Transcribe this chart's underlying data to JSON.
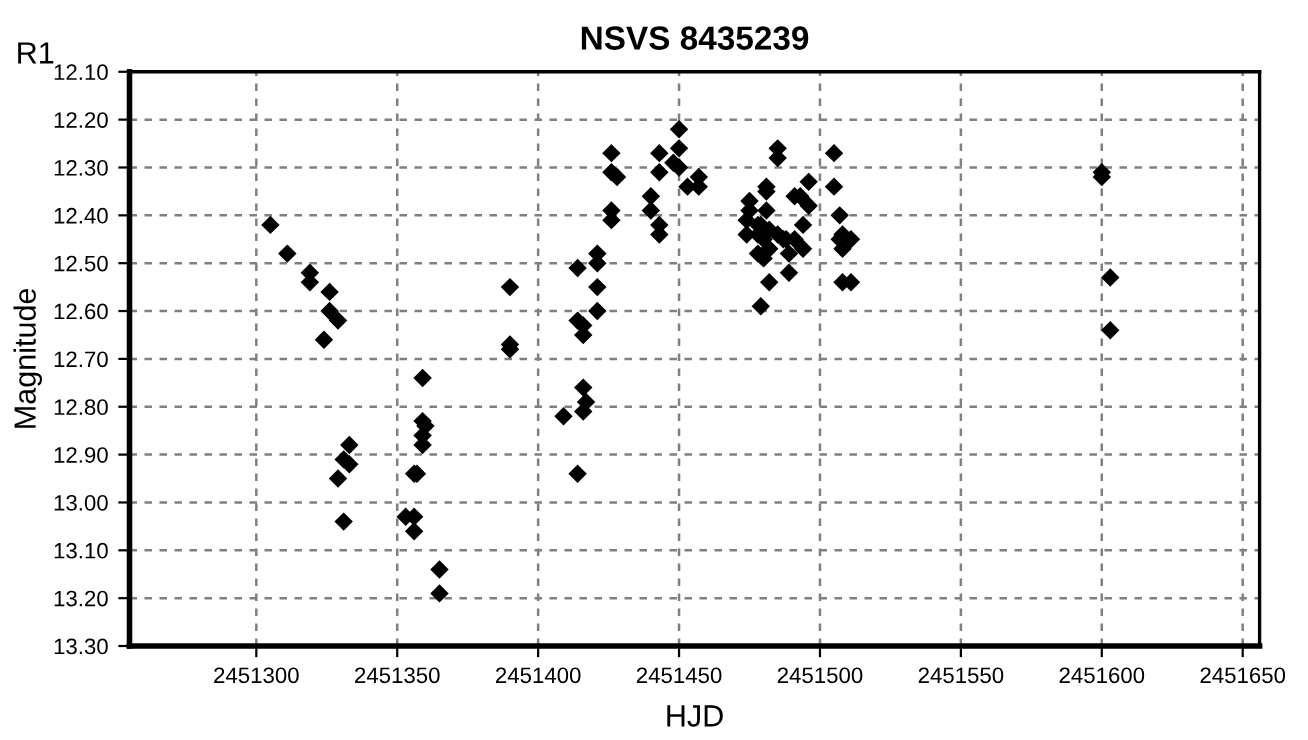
{
  "chart_data": {
    "type": "scatter",
    "title": "NSVS 8435239",
    "xlabel": "HJD",
    "ylabel": "Magnitude",
    "annotations": [
      "R1"
    ],
    "x": [
      2451305,
      2451311,
      2451319,
      2451319,
      2451326,
      2451326,
      2451329,
      2451324,
      2451359,
      2451359,
      2451360,
      2451359,
      2451359,
      2451333,
      2451331,
      2451333,
      2451329,
      2451356,
      2451357,
      2451331,
      2451353,
      2451356,
      2451356,
      2451365,
      2451365,
      2451390,
      2451390,
      2451390,
      2451426,
      2451426,
      2451428,
      2451426,
      2451426,
      2451421,
      2451421,
      2451414,
      2451421,
      2451421,
      2451414,
      2451416,
      2451416,
      2451416,
      2451417,
      2451416,
      2451409,
      2451414,
      2451440,
      2451440,
      2451443,
      2451443,
      2451443,
      2451443,
      2451450,
      2451450,
      2451448,
      2451450,
      2451453,
      2451457,
      2451457,
      2451475,
      2451475,
      2451474,
      2451474,
      2451481,
      2451481,
      2451481,
      2451479,
      2451482,
      2451478,
      2451478,
      2451480,
      2451482,
      2451485,
      2451488,
      2451482,
      2451489,
      2451489,
      2451479,
      2451485,
      2451485,
      2451491,
      2451496,
      2451493,
      2451496,
      2451494,
      2451494,
      2451487,
      2451491,
      2451505,
      2451505,
      2451507,
      2451508,
      2451511,
      2451507,
      2451508,
      2451508,
      2451511,
      2451478,
      2451480,
      2451600,
      2451600,
      2451603,
      2451603
    ],
    "series": [
      {
        "color": "#000000",
        "values": [
          12.42,
          12.48,
          12.52,
          12.54,
          12.56,
          12.6,
          12.62,
          12.66,
          12.74,
          12.83,
          12.84,
          12.86,
          12.88,
          12.88,
          12.91,
          12.92,
          12.95,
          12.94,
          12.94,
          13.04,
          13.03,
          13.03,
          13.06,
          13.14,
          13.19,
          12.55,
          12.67,
          12.68,
          12.27,
          12.31,
          12.32,
          12.39,
          12.41,
          12.48,
          12.5,
          12.51,
          12.55,
          12.6,
          12.62,
          12.63,
          12.65,
          12.76,
          12.79,
          12.81,
          12.82,
          12.94,
          12.36,
          12.39,
          12.27,
          12.31,
          12.42,
          12.44,
          12.22,
          12.26,
          12.29,
          12.3,
          12.34,
          12.32,
          12.34,
          12.37,
          12.39,
          12.41,
          12.44,
          12.35,
          12.34,
          12.39,
          12.42,
          12.43,
          12.44,
          12.48,
          12.49,
          12.47,
          12.44,
          12.45,
          12.54,
          12.48,
          12.52,
          12.59,
          12.26,
          12.28,
          12.36,
          12.33,
          12.36,
          12.38,
          12.42,
          12.47,
          12.45,
          12.45,
          12.27,
          12.34,
          12.4,
          12.44,
          12.45,
          12.45,
          12.47,
          12.54,
          12.54,
          12.42,
          12.45,
          12.31,
          12.32,
          12.53,
          12.64
        ]
      }
    ],
    "xlim": [
      2451255,
      2451656
    ],
    "xticks": [
      2451300,
      2451350,
      2451400,
      2451450,
      2451500,
      2451550,
      2451600,
      2451650
    ],
    "ylim": [
      13.3,
      12.1
    ],
    "yticks": [
      {
        "value": 12.1,
        "label": "12.10"
      },
      {
        "value": 12.2,
        "label": "12.20"
      },
      {
        "value": 12.3,
        "label": "12.30"
      },
      {
        "value": 12.4,
        "label": "12.40"
      },
      {
        "value": 12.5,
        "label": "12.50"
      },
      {
        "value": 12.6,
        "label": "12.60"
      },
      {
        "value": 12.7,
        "label": "12.70"
      },
      {
        "value": 12.8,
        "label": "12.80"
      },
      {
        "value": 12.9,
        "label": "12.90"
      },
      {
        "value": 13.0,
        "label": "13.00"
      },
      {
        "value": 13.1,
        "label": "13.10"
      },
      {
        "value": 13.2,
        "label": "13.20"
      },
      {
        "value": 13.3,
        "label": "13.30"
      }
    ],
    "grid": true,
    "marker": "diamond",
    "legend": false
  }
}
